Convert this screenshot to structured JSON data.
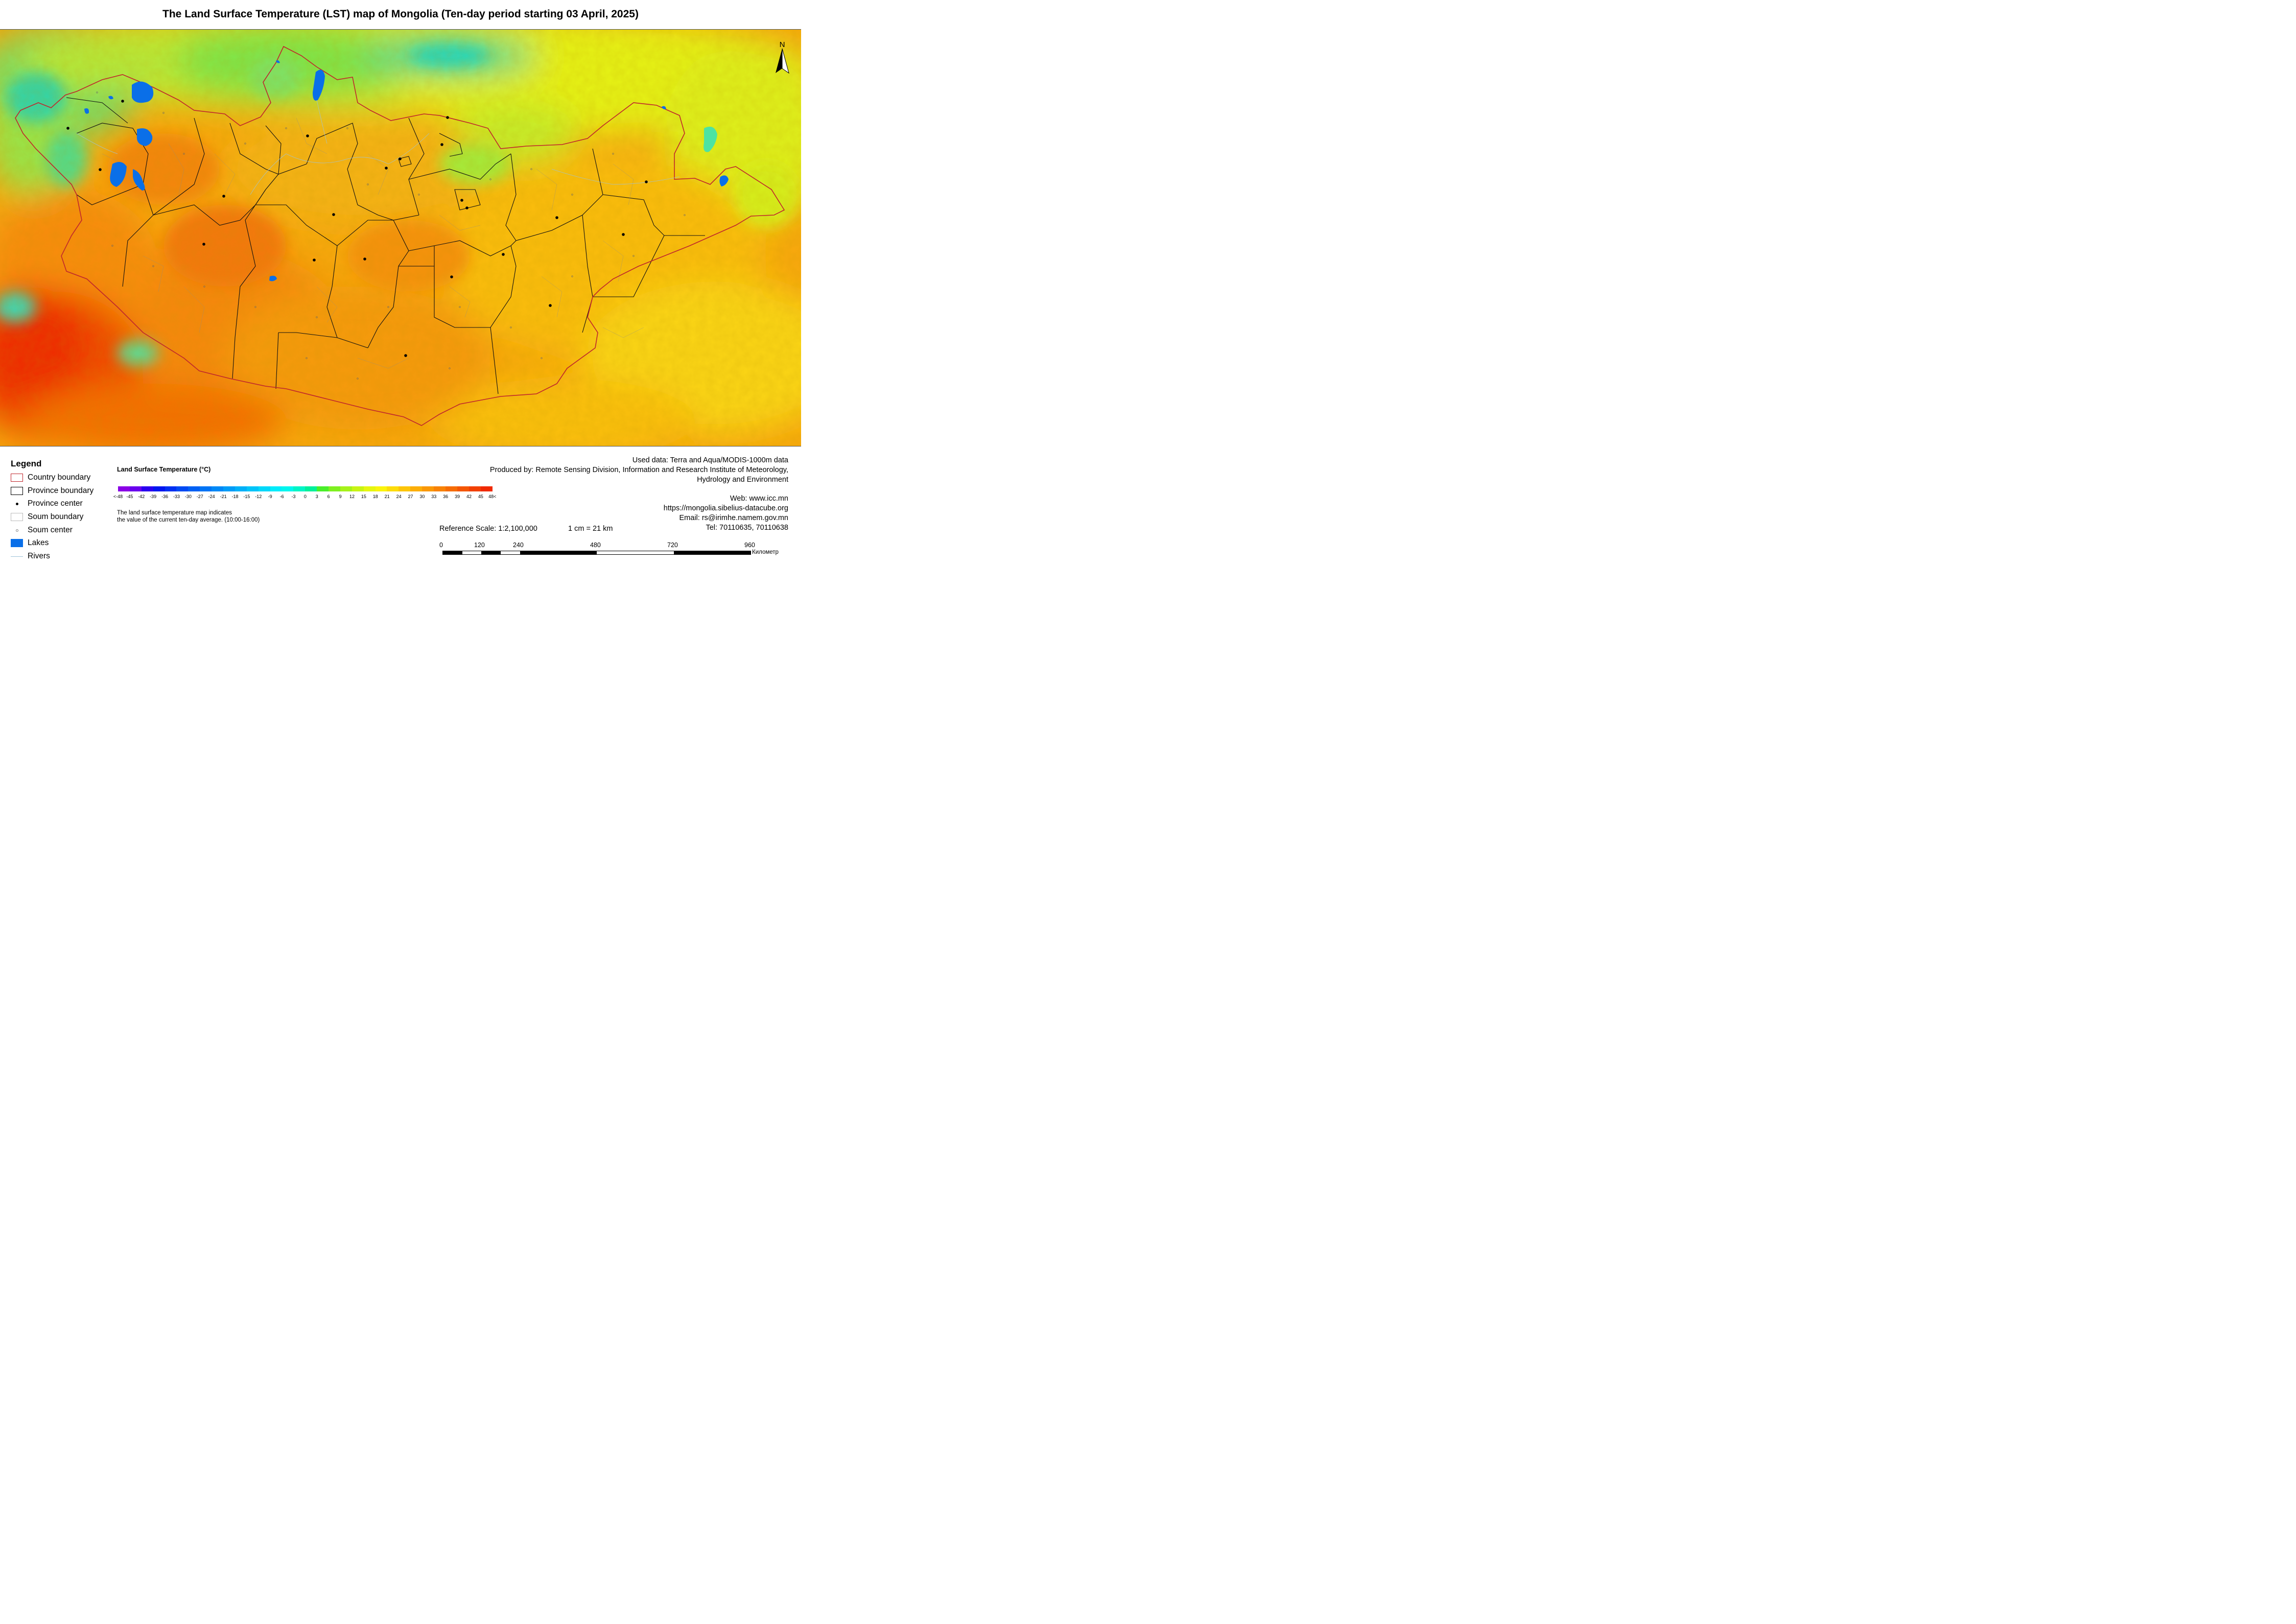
{
  "title": "The Land Surface Temperature (LST) map of Mongolia (Ten-day period starting 03 April, 2025)",
  "north_arrow_label": "N",
  "legend": {
    "title": "Legend",
    "items": [
      {
        "label": "Country boundary",
        "symbol": "country-boundary",
        "color": "#c0262c"
      },
      {
        "label": "Province boundary",
        "symbol": "province-boundary",
        "color": "#000000"
      },
      {
        "label": "Province center",
        "symbol": "province-center",
        "color": "#000000"
      },
      {
        "label": "Soum boundary",
        "symbol": "soum-boundary",
        "color": "#bbbbbb"
      },
      {
        "label": "Soum center",
        "symbol": "soum-center",
        "color": "#888888"
      },
      {
        "label": "Lakes",
        "symbol": "lake",
        "color": "#0a6fe8"
      },
      {
        "label": "Rivers",
        "symbol": "river",
        "color": "#9fc3d9"
      }
    ]
  },
  "lst_scale": {
    "title": "Land Surface Temperature (°C)",
    "ticks": [
      "<-48",
      "-45",
      "-42",
      "-39",
      "-36",
      "-33",
      "-30",
      "-27",
      "-24",
      "-21",
      "-18",
      "-15",
      "-12",
      "-9",
      "-6",
      "-3",
      "0",
      "3",
      "6",
      "9",
      "12",
      "15",
      "18",
      "21",
      "24",
      "27",
      "30",
      "33",
      "36",
      "39",
      "42",
      "45",
      "48<"
    ],
    "colors": [
      "#8a00e6",
      "#6a00ee",
      "#2a00f0",
      "#0016f0",
      "#0030f2",
      "#004af3",
      "#0060f4",
      "#0074f5",
      "#0088f6",
      "#009cf7",
      "#00b0f8",
      "#00c4f9",
      "#00d8fa",
      "#00ecfb",
      "#00f6ee",
      "#00f5c6",
      "#00f09a",
      "#4aee2a",
      "#7ef020",
      "#a6f21a",
      "#c8f414",
      "#e6f610",
      "#fbf40c",
      "#fddc0a",
      "#fdc508",
      "#fcae07",
      "#fa9806",
      "#f88205",
      "#f66c04",
      "#f45603",
      "#f24002",
      "#f02a01"
    ],
    "note_line1": "The land surface temperature map indicates",
    "note_line2": "the value of the current ten-day average. (10:00-16:00)"
  },
  "info": {
    "used_data": "Used data: Terra and Aqua/MODIS-1000m data",
    "produced_by_line1": "Produced by: Remote Sensing Division, Information and Research Institute of Meteorology,",
    "produced_by_line2": "Hydrology and Environment",
    "web": "Web: www.icc.mn",
    "url": "https://mongolia.sibelius-datacube.org",
    "email": "Email: rs@irimhe.namem.gov.mn",
    "tel": "Tel: 70110635, 70110638"
  },
  "scale_bar": {
    "reference_scale": "Reference Scale: 1:2,100,000",
    "cm_equivalence": "1 cm = 21 km",
    "ticks": [
      "0",
      "120",
      "240",
      "480",
      "720",
      "960"
    ],
    "unit": "Километр"
  }
}
